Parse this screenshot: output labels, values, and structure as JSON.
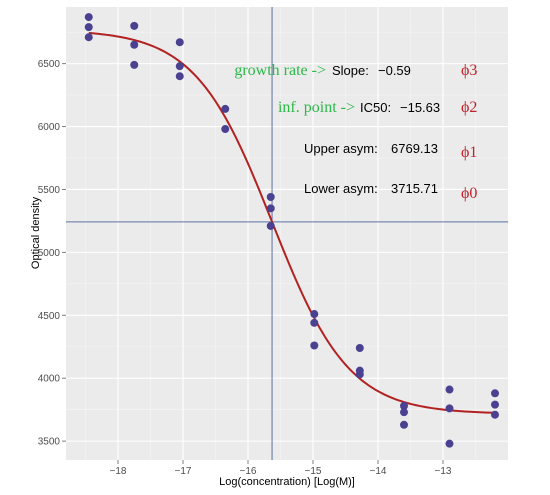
{
  "chart_data": {
    "type": "scatter",
    "title": "",
    "xlabel": "Log(concentration) [Log(M)]",
    "ylabel": "Optical density",
    "xlim": [
      -18.8,
      -12.0
    ],
    "ylim": [
      3350,
      6950
    ],
    "xticks": [
      -18,
      -17,
      -16,
      -15,
      -14,
      -13
    ],
    "xtick_labels": [
      "−18",
      "−17",
      "−16",
      "−15",
      "−14",
      "−13"
    ],
    "yticks": [
      3500,
      4000,
      4500,
      5000,
      5500,
      6000,
      6500
    ],
    "ytick_labels": [
      "3500",
      "4000",
      "4500",
      "5000",
      "5500",
      "6000",
      "6500"
    ],
    "grid": true,
    "background": "#ebebeb",
    "point_color": "#4b4191",
    "curve_color": "#b22222",
    "refline_color": "#5a6fa0",
    "points": [
      {
        "x": -18.45,
        "y": 6870
      },
      {
        "x": -18.45,
        "y": 6790
      },
      {
        "x": -18.45,
        "y": 6710
      },
      {
        "x": -17.75,
        "y": 6800
      },
      {
        "x": -17.75,
        "y": 6650
      },
      {
        "x": -17.75,
        "y": 6490
      },
      {
        "x": -17.05,
        "y": 6670
      },
      {
        "x": -17.05,
        "y": 6480
      },
      {
        "x": -17.05,
        "y": 6400
      },
      {
        "x": -16.35,
        "y": 6140
      },
      {
        "x": -16.35,
        "y": 5980
      },
      {
        "x": -15.65,
        "y": 5440
      },
      {
        "x": -15.65,
        "y": 5350
      },
      {
        "x": -15.65,
        "y": 5210
      },
      {
        "x": -14.98,
        "y": 4510
      },
      {
        "x": -14.98,
        "y": 4440
      },
      {
        "x": -14.98,
        "y": 4260
      },
      {
        "x": -14.28,
        "y": 4240
      },
      {
        "x": -14.28,
        "y": 4060
      },
      {
        "x": -14.28,
        "y": 4030
      },
      {
        "x": -13.6,
        "y": 3780
      },
      {
        "x": -13.6,
        "y": 3730
      },
      {
        "x": -13.6,
        "y": 3630
      },
      {
        "x": -12.9,
        "y": 3910
      },
      {
        "x": -12.9,
        "y": 3760
      },
      {
        "x": -12.9,
        "y": 3480
      },
      {
        "x": -12.2,
        "y": 3880
      },
      {
        "x": -12.2,
        "y": 3790
      },
      {
        "x": -12.2,
        "y": 3710
      }
    ],
    "curve_params": {
      "slope": -0.59,
      "ic50": -15.63,
      "upper": 6769.13,
      "lower": 3715.71,
      "x_range": [
        -18.45,
        -12.2
      ]
    },
    "ref_lines": {
      "vertical_x": -15.63,
      "horizontal_y": 5242.42
    },
    "annotations": [
      {
        "note": "growth rate ->",
        "label": "Slope:",
        "value": "−0.59",
        "param": "ϕ3"
      },
      {
        "note": "inf. point ->",
        "label": "IC50:",
        "value": "−15.63",
        "param": "ϕ2"
      },
      {
        "note": "",
        "label": "Upper asym:",
        "value": "6769.13",
        "param": "ϕ1"
      },
      {
        "note": "",
        "label": "Lower asym:",
        "value": "3715.71",
        "param": "ϕ0"
      }
    ]
  }
}
